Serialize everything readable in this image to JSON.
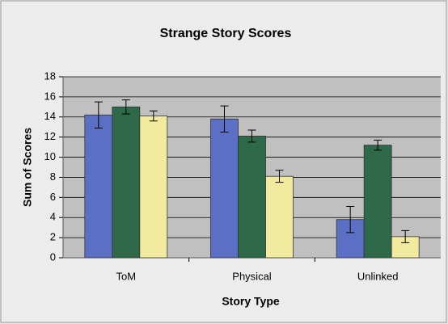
{
  "chart_data": {
    "type": "bar",
    "title": "Strange Story Scores",
    "x_label": "Story Type",
    "y_label": "Sum of Scores",
    "categories": [
      "ToM",
      "Physical",
      "Unlinked"
    ],
    "series": [
      {
        "color": "#5b6fc4",
        "values": [
          14.2,
          13.8,
          3.8
        ],
        "errors": [
          1.3,
          1.3,
          1.3
        ]
      },
      {
        "color": "#2e6a4a",
        "values": [
          15.0,
          12.1,
          11.2
        ],
        "errors": [
          0.7,
          0.6,
          0.5
        ]
      },
      {
        "color": "#f2ea9e",
        "values": [
          14.1,
          8.1,
          2.1
        ],
        "errors": [
          0.5,
          0.6,
          0.6
        ]
      }
    ],
    "ylim": [
      0,
      18
    ],
    "yticks": [
      0,
      2,
      4,
      6,
      8,
      10,
      12,
      14,
      16,
      18
    ],
    "grid": true
  }
}
